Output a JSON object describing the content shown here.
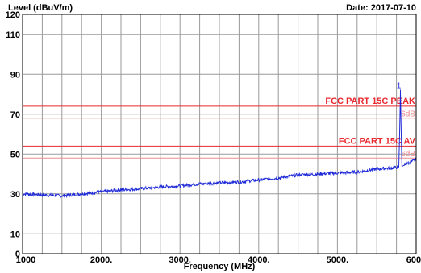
{
  "chart_data": {
    "type": "line",
    "ylabel": "Level (dBuV/m)",
    "xlabel": "Frequency (MHz)",
    "date_label": "Date: 2017-07-10",
    "xlim": [
      1000,
      6000
    ],
    "ylim": [
      0,
      120
    ],
    "x_ticks": [
      1000,
      2000,
      3000,
      4000,
      5000,
      6000
    ],
    "x_tick_labels": [
      "1000",
      "2000.",
      "3000.",
      "4000.",
      "5000.",
      "6000"
    ],
    "y_ticks": [
      0,
      10,
      30,
      50,
      70,
      90,
      110,
      120
    ],
    "y_tick_labels": [
      "0",
      "10",
      "30",
      "50",
      "70",
      "90",
      "110",
      "120"
    ],
    "grid": true,
    "limits": [
      {
        "label": "FCC PART 15C PEAK",
        "value": 74,
        "margin_value": 68,
        "margin_label": "6dB",
        "color": "#e8282e"
      },
      {
        "label": "FCC PART 15C AV",
        "value": 54,
        "margin_value": 48,
        "margin_label": "6dB",
        "color": "#e8282e"
      }
    ],
    "series": [
      {
        "color": "#1e2ad8",
        "x": [
          1000,
          1250,
          1500,
          1750,
          2000,
          2250,
          2500,
          2750,
          3000,
          3250,
          3500,
          3750,
          4000,
          4250,
          4500,
          4750,
          5000,
          5250,
          5500,
          5700,
          5780,
          5790,
          5800,
          5810,
          5820,
          5830,
          5850,
          5900,
          6000
        ],
        "y": [
          30,
          29.5,
          29,
          30,
          31,
          32,
          32.5,
          33.5,
          34,
          35,
          35.5,
          36,
          37,
          38,
          39.5,
          40,
          40.5,
          41,
          42.5,
          43,
          43.5,
          60,
          81,
          60,
          44,
          44,
          44.5,
          45.5,
          47
        ]
      }
    ],
    "markers": [
      {
        "label": "1",
        "x": 5800,
        "y": 81
      }
    ]
  }
}
